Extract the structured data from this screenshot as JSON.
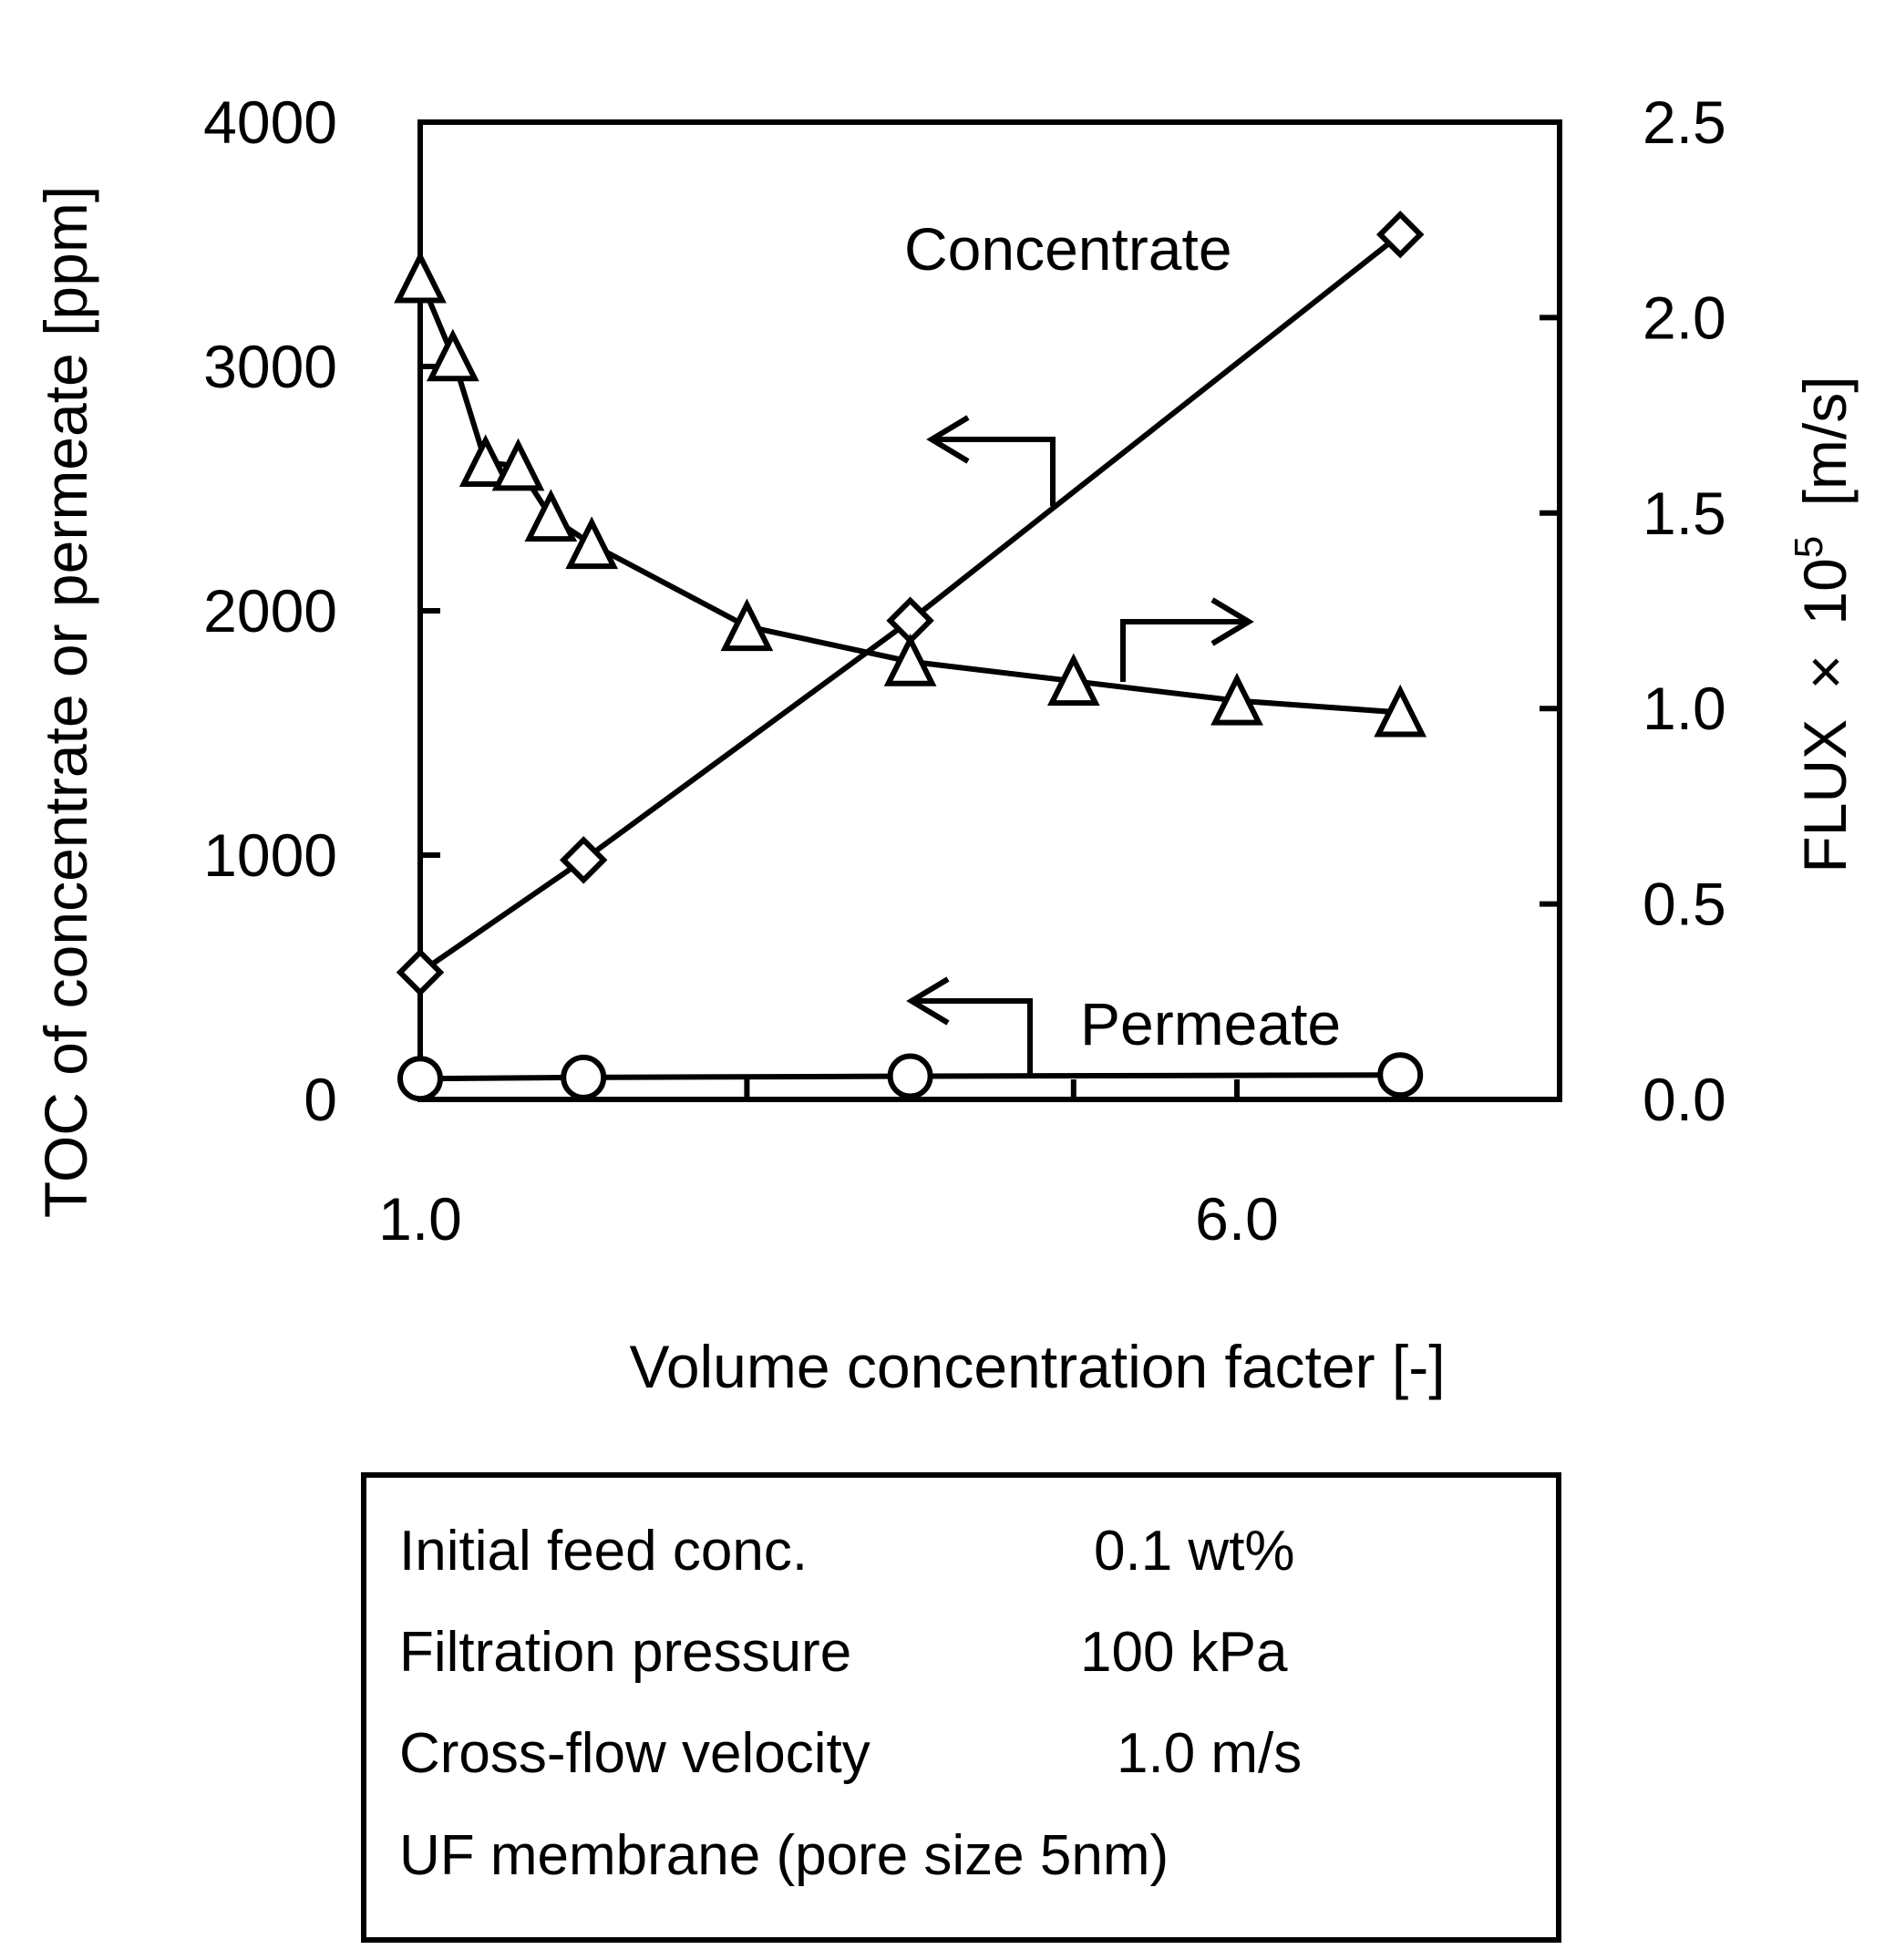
{
  "chart_data": {
    "type": "line",
    "x": {
      "label": "Volume concentration facter [-]",
      "range": [
        1.0,
        8.0
      ],
      "tick_labels": [
        "1.0",
        "6.0"
      ],
      "tick_values": [
        1.0,
        6.0
      ],
      "minor_ticks": [
        2,
        3,
        4,
        5,
        6,
        7
      ]
    },
    "y_left": {
      "label": "TOC of concentrate or permeate [ppm]",
      "range": [
        0,
        4000
      ],
      "ticks": [
        0,
        1000,
        2000,
        3000,
        4000
      ],
      "tick_labels": [
        "0",
        "1000",
        "2000",
        "3000",
        "4000"
      ]
    },
    "y_right": {
      "label": "FLUX",
      "label_times": "×",
      "label_base": "10",
      "label_exp": "5",
      "label_unit": "[m/s]",
      "range": [
        0,
        2.5
      ],
      "ticks": [
        0,
        0.5,
        1.0,
        1.5,
        2.0,
        2.5
      ],
      "tick_labels": [
        "0.0",
        "0.5",
        "1.0",
        "1.5",
        "2.0",
        "2.5"
      ]
    },
    "series": [
      {
        "name": "Concentrate",
        "axis": "left",
        "marker": "diamond",
        "x": [
          1.0,
          2.0,
          4.0,
          7.0
        ],
        "y": [
          520,
          980,
          1960,
          3540
        ]
      },
      {
        "name": "Permeate",
        "axis": "left",
        "marker": "circle",
        "x": [
          1.0,
          2.0,
          4.0,
          7.0
        ],
        "y": [
          85,
          90,
          95,
          100
        ]
      },
      {
        "name": "Flux",
        "axis": "right",
        "marker": "triangle",
        "x": [
          1.0,
          1.2,
          1.4,
          1.6,
          1.8,
          2.05,
          3.0,
          4.0,
          5.0,
          6.0,
          7.0
        ],
        "y": [
          2.1,
          1.9,
          1.63,
          1.62,
          1.49,
          1.42,
          1.21,
          1.12,
          1.07,
          1.02,
          0.99
        ]
      }
    ],
    "annotations": {
      "concentrate_label": "Concentrate",
      "permeate_label": "Permeate"
    }
  },
  "conditions": [
    {
      "label": "Initial feed conc.",
      "value": "0.1 wt%"
    },
    {
      "label": "Filtration pressure",
      "value": "100 kPa"
    },
    {
      "label": "Cross-flow velocity",
      "value": "1.0 m/s"
    },
    {
      "label": "UF membrane (pore size 5nm)",
      "value": ""
    }
  ]
}
